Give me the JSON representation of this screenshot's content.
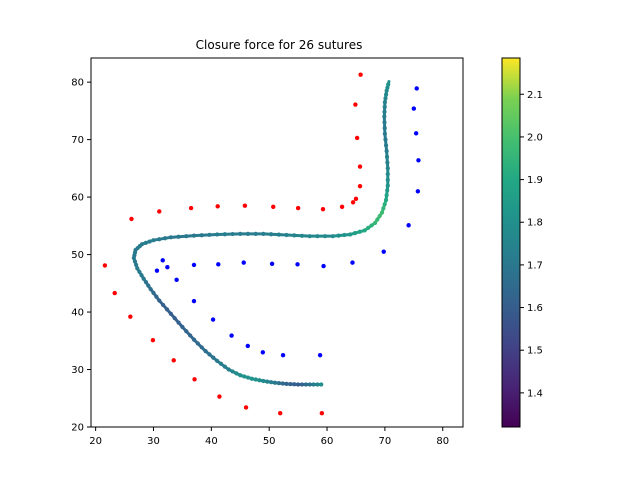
{
  "chart_data": {
    "type": "scatter",
    "title": "Closure force for 26 sutures",
    "xlabel": "",
    "ylabel": "",
    "xlim": [
      19.2,
      83.5
    ],
    "ylim": [
      20.0,
      84.2
    ],
    "x_ticks": [
      20,
      30,
      40,
      50,
      60,
      70,
      80
    ],
    "y_ticks": [
      20,
      30,
      40,
      50,
      60,
      70,
      80
    ],
    "grid": false,
    "legend": "none",
    "colorbar": {
      "cmap": "viridis",
      "min": 1.32,
      "max": 2.185,
      "ticks": [
        1.4,
        1.5,
        1.6,
        1.7,
        1.8,
        1.9,
        2.0,
        2.1
      ]
    },
    "series": [
      {
        "marker_color": "#ff0000",
        "points": [
          [
            21.6,
            48.1
          ],
          [
            23.3,
            43.3
          ],
          [
            26.0,
            39.2
          ],
          [
            29.9,
            35.1
          ],
          [
            33.5,
            31.6
          ],
          [
            37.1,
            28.3
          ],
          [
            41.4,
            25.3
          ],
          [
            46.0,
            23.4
          ],
          [
            51.9,
            22.4
          ],
          [
            59.1,
            22.4
          ],
          [
            26.2,
            56.2
          ],
          [
            31.0,
            57.5
          ],
          [
            36.5,
            58.1
          ],
          [
            41.1,
            58.4
          ],
          [
            45.8,
            58.5
          ],
          [
            50.7,
            58.3
          ],
          [
            55.0,
            58.1
          ],
          [
            59.3,
            57.9
          ],
          [
            62.6,
            58.3
          ],
          [
            64.5,
            59.1
          ],
          [
            65.0,
            59.7
          ],
          [
            65.7,
            61.9
          ],
          [
            65.7,
            65.3
          ],
          [
            65.2,
            70.3
          ],
          [
            64.9,
            76.1
          ],
          [
            65.8,
            81.3
          ]
        ]
      },
      {
        "marker_color": "#0000ff",
        "points": [
          [
            30.6,
            47.2
          ],
          [
            31.6,
            49.0
          ],
          [
            32.4,
            47.8
          ],
          [
            34.0,
            45.6
          ],
          [
            37.0,
            41.9
          ],
          [
            40.3,
            38.7
          ],
          [
            43.5,
            35.9
          ],
          [
            46.3,
            34.1
          ],
          [
            48.9,
            33.0
          ],
          [
            52.4,
            32.5
          ],
          [
            58.8,
            32.5
          ],
          [
            37.0,
            48.2
          ],
          [
            41.2,
            48.3
          ],
          [
            45.6,
            48.6
          ],
          [
            50.5,
            48.4
          ],
          [
            54.9,
            48.3
          ],
          [
            59.4,
            48.0
          ],
          [
            64.4,
            48.6
          ],
          [
            69.8,
            50.5
          ],
          [
            74.1,
            55.1
          ],
          [
            75.7,
            61.0
          ],
          [
            75.8,
            66.4
          ],
          [
            75.4,
            71.1
          ],
          [
            75.0,
            75.4
          ],
          [
            75.5,
            78.9
          ]
        ]
      }
    ],
    "curve": [
      [
        59.0,
        27.4,
        1.8
      ],
      [
        57.0,
        27.4,
        1.68
      ],
      [
        55.0,
        27.4,
        1.6
      ],
      [
        53.0,
        27.5,
        1.62
      ],
      [
        51.0,
        27.7,
        1.7
      ],
      [
        49.0,
        28.0,
        1.78
      ],
      [
        47.0,
        28.4,
        1.82
      ],
      [
        45.0,
        29.0,
        1.8
      ],
      [
        43.0,
        30.0,
        1.74
      ],
      [
        41.0,
        31.5,
        1.7
      ],
      [
        39.0,
        33.2,
        1.66
      ],
      [
        37.0,
        35.2,
        1.64
      ],
      [
        35.0,
        37.4,
        1.62
      ],
      [
        33.0,
        39.7,
        1.6
      ],
      [
        31.0,
        42.0,
        1.62
      ],
      [
        29.5,
        44.0,
        1.66
      ],
      [
        28.3,
        45.8,
        1.7
      ],
      [
        27.2,
        47.6,
        1.72
      ],
      [
        26.6,
        49.4,
        1.7
      ],
      [
        26.9,
        50.8,
        1.7
      ],
      [
        28.0,
        51.8,
        1.72
      ],
      [
        30.0,
        52.5,
        1.72
      ],
      [
        33.0,
        53.0,
        1.7
      ],
      [
        37.0,
        53.3,
        1.7
      ],
      [
        41.0,
        53.5,
        1.72
      ],
      [
        45.0,
        53.6,
        1.72
      ],
      [
        49.0,
        53.6,
        1.72
      ],
      [
        53.0,
        53.4,
        1.74
      ],
      [
        57.0,
        53.2,
        1.76
      ],
      [
        61.0,
        53.2,
        1.78
      ],
      [
        64.0,
        53.5,
        1.84
      ],
      [
        66.5,
        54.2,
        1.9
      ],
      [
        68.3,
        55.5,
        1.96
      ],
      [
        69.5,
        57.3,
        1.98
      ],
      [
        70.2,
        59.5,
        1.9
      ],
      [
        70.5,
        62.0,
        1.82
      ],
      [
        70.5,
        65.0,
        1.76
      ],
      [
        70.3,
        68.0,
        1.72
      ],
      [
        70.0,
        71.0,
        1.7
      ],
      [
        69.9,
        74.0,
        1.72
      ],
      [
        70.0,
        76.5,
        1.74
      ],
      [
        70.3,
        78.5,
        1.78
      ],
      [
        70.7,
        80.1,
        1.82
      ]
    ]
  }
}
